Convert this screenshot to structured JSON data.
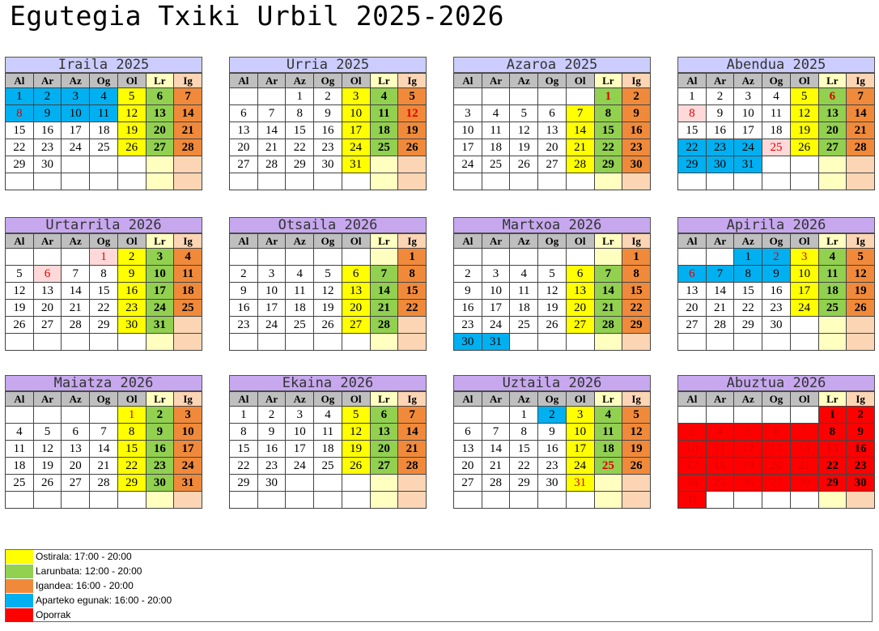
{
  "title": "Egutegia Txiki Urbil 2025-2026",
  "colors": {
    "friday": "#ffff00",
    "saturday": "#92d050",
    "sunday": "#f08a3a",
    "extra": "#00b0f0",
    "vacation": "#ff0000",
    "head_violet": "#c7a8ef",
    "head_lav": "#ccccff"
  },
  "day_names": [
    "Al",
    "Ar",
    "Az",
    "Og",
    "Ol",
    "Lr",
    "Ig"
  ],
  "months": [
    {
      "name": "Iraila 2025",
      "start": 0,
      "days": 30,
      "head": "lav",
      "extra": [
        1,
        2,
        3,
        4,
        8,
        9,
        10,
        11
      ],
      "holidays": [
        8
      ],
      "pink": [],
      "red": []
    },
    {
      "name": "Urria 2025",
      "start": 2,
      "days": 31,
      "head": "lav",
      "extra": [],
      "holidays": [
        12
      ],
      "pink": [],
      "red": []
    },
    {
      "name": "Azaroa 2025",
      "start": 5,
      "days": 30,
      "head": "lav",
      "extra": [],
      "holidays": [
        1
      ],
      "pink": [],
      "red": []
    },
    {
      "name": "Abendua 2025",
      "start": 0,
      "days": 31,
      "head": "lav",
      "extra": [
        22,
        23,
        24,
        29,
        30,
        31
      ],
      "holidays": [
        6,
        8,
        25
      ],
      "pink": [
        8,
        25
      ],
      "red": []
    },
    {
      "name": "Urtarrila 2026",
      "start": 3,
      "days": 31,
      "head": "violet",
      "extra": [],
      "holidays": [
        1,
        6
      ],
      "pink": [
        1,
        6
      ],
      "red": []
    },
    {
      "name": "Otsaila 2026",
      "start": 6,
      "days": 28,
      "head": "violet",
      "extra": [],
      "holidays": [],
      "pink": [],
      "red": []
    },
    {
      "name": "Martxoa 2026",
      "start": 6,
      "days": 31,
      "head": "violet",
      "extra": [
        30,
        31
      ],
      "holidays": [],
      "pink": [],
      "red": []
    },
    {
      "name": "Apirila 2026",
      "start": 2,
      "days": 30,
      "head": "violet",
      "extra": [
        1,
        2,
        6,
        7,
        8,
        9
      ],
      "holidays": [
        2,
        3,
        6
      ],
      "pink": [],
      "red": []
    },
    {
      "name": "Maiatza 2026",
      "start": 4,
      "days": 31,
      "head": "violet",
      "extra": [],
      "holidays": [
        1
      ],
      "pink": [],
      "red": []
    },
    {
      "name": "Ekaina 2026",
      "start": 0,
      "days": 30,
      "head": "violet",
      "extra": [],
      "holidays": [],
      "pink": [],
      "red": []
    },
    {
      "name": "Uztaila 2026",
      "start": 2,
      "days": 31,
      "head": "violet",
      "extra": [
        2
      ],
      "holidays": [
        25,
        31
      ],
      "pink": [],
      "red": []
    },
    {
      "name": "Abuztua 2026",
      "start": 5,
      "days": 31,
      "head": "violet",
      "extra": [],
      "holidays": [
        3,
        4,
        5,
        6,
        7,
        10,
        11,
        12,
        13,
        14,
        15,
        17,
        18,
        19,
        20,
        21,
        24,
        25,
        26,
        27,
        28,
        31
      ],
      "pink": [],
      "red": [
        1,
        2,
        3,
        4,
        5,
        6,
        7,
        8,
        9,
        10,
        11,
        12,
        13,
        14,
        15,
        16,
        17,
        18,
        19,
        20,
        21,
        22,
        23,
        24,
        25,
        26,
        27,
        28,
        29,
        30,
        31
      ]
    }
  ],
  "legend": [
    {
      "label": "Ostirala: 17:00 - 20:00",
      "color": "#ffff00"
    },
    {
      "label": "Larunbata: 12:00 - 20:00",
      "color": "#92d050"
    },
    {
      "label": "Igandea: 16:00 - 20:00",
      "color": "#f08a3a"
    },
    {
      "label": "Aparteko egunak: 16:00 - 20:00",
      "color": "#00b0f0"
    },
    {
      "label": "Oporrak",
      "color": "#ff0000"
    }
  ]
}
